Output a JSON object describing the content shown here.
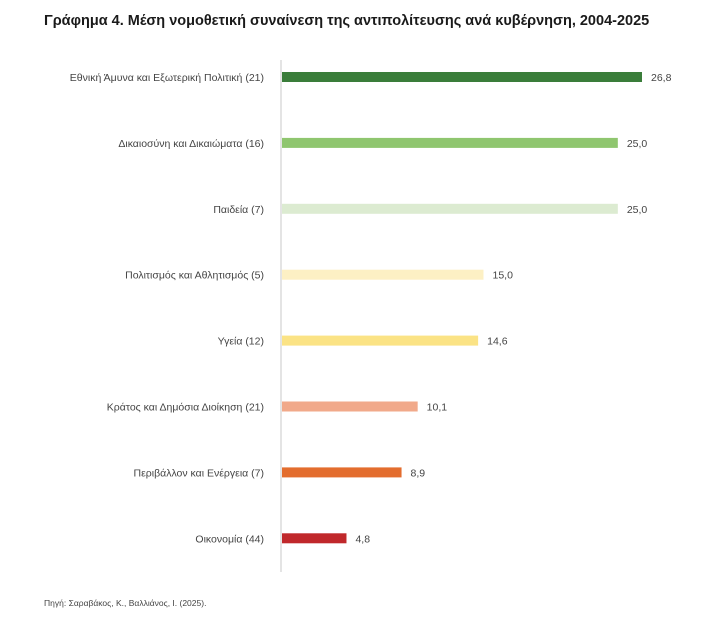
{
  "title": "Γράφημα 4. Μέση νομοθετική συναίνεση της αντιπολίτευσης ανά κυβέρνηση, 2004-2025",
  "source": "Πηγή: Σαραβάκος, Κ., Βαλλιάνος, Ι. (2025).",
  "chart_data": {
    "type": "bar",
    "orientation": "horizontal",
    "categories": [
      "Εθνική Άμυνα και Εξωτερική Πολιτική (21)",
      "Δικαιοσύνη και Δικαιώματα  (16)",
      "Παιδεία  (7)",
      "Πολιτισμός και Αθλητισμός (5)",
      "Υγεία (12)",
      "Κράτος και Δημόσια Διοίκηση  (21)",
      "Περιβάλλον και Ενέργεια (7)",
      "Οικονομία (44)"
    ],
    "values": [
      26.8,
      25.0,
      25.0,
      15.0,
      14.6,
      10.1,
      8.9,
      4.8
    ],
    "value_labels": [
      "26,8",
      "25,0",
      "25,0",
      "15,0",
      "14,6",
      "10,1",
      "8,9",
      "4,8"
    ],
    "colors": [
      "#3a7d3a",
      "#8fc66f",
      "#dcebd1",
      "#fdf0c4",
      "#fbe385",
      "#f1a98a",
      "#e36d2e",
      "#c0282b"
    ],
    "xlim": [
      0,
      26.8
    ],
    "grid": false,
    "legend": "none"
  }
}
